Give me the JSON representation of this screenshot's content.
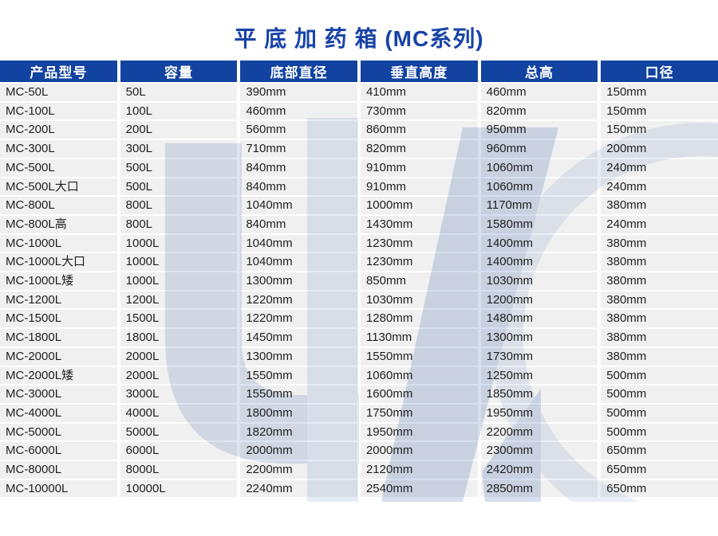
{
  "title": "平 底 加 药 箱 (MC系列)",
  "colors": {
    "header_bg": "#1243a0",
    "title_color": "#1843a7",
    "row_bg": "#f0f0f0",
    "watermark_light": "#dde5f2",
    "watermark_mid": "#d6dfef",
    "watermark_faint": "#e9eef7"
  },
  "table": {
    "columns": [
      "产品型号",
      "容量",
      "底部直径",
      "垂直高度",
      "总高",
      "口径"
    ],
    "rows": [
      [
        "MC-50L",
        "50L",
        "390mm",
        "410mm",
        "460mm",
        "150mm"
      ],
      [
        "MC-100L",
        "100L",
        "460mm",
        "730mm",
        "820mm",
        "150mm"
      ],
      [
        "MC-200L",
        "200L",
        "560mm",
        "860mm",
        "950mm",
        "150mm"
      ],
      [
        "MC-300L",
        "300L",
        "710mm",
        "820mm",
        "960mm",
        "200mm"
      ],
      [
        "MC-500L",
        "500L",
        "840mm",
        "910mm",
        "1060mm",
        "240mm"
      ],
      [
        "MC-500L大口",
        "500L",
        "840mm",
        "910mm",
        "1060mm",
        "240mm"
      ],
      [
        "MC-800L",
        "800L",
        "1040mm",
        "1000mm",
        "1170mm",
        "380mm"
      ],
      [
        "MC-800L高",
        "800L",
        "840mm",
        "1430mm",
        "1580mm",
        "240mm"
      ],
      [
        "MC-1000L",
        "1000L",
        "1040mm",
        "1230mm",
        "1400mm",
        "380mm"
      ],
      [
        "MC-1000L大口",
        "1000L",
        "1040mm",
        "1230mm",
        "1400mm",
        "380mm"
      ],
      [
        "MC-1000L矮",
        "1000L",
        "1300mm",
        "850mm",
        "1030mm",
        "380mm"
      ],
      [
        "MC-1200L",
        "1200L",
        "1220mm",
        "1030mm",
        "1200mm",
        "380mm"
      ],
      [
        "MC-1500L",
        "1500L",
        "1220mm",
        "1280mm",
        "1480mm",
        "380mm"
      ],
      [
        "MC-1800L",
        "1800L",
        "1450mm",
        "1130mm",
        "1300mm",
        "380mm"
      ],
      [
        "MC-2000L",
        "2000L",
        "1300mm",
        "1550mm",
        "1730mm",
        "380mm"
      ],
      [
        "MC-2000L矮",
        "2000L",
        "1550mm",
        "1060mm",
        "1250mm",
        "500mm"
      ],
      [
        "MC-3000L",
        "3000L",
        "1550mm",
        "1600mm",
        "1850mm",
        "500mm"
      ],
      [
        "MC-4000L",
        "4000L",
        "1800mm",
        "1750mm",
        "1950mm",
        "500mm"
      ],
      [
        "MC-5000L",
        "5000L",
        "1820mm",
        "1950mm",
        "2200mm",
        "500mm"
      ],
      [
        "MC-6000L",
        "6000L",
        "2000mm",
        "2000mm",
        "2300mm",
        "650mm"
      ],
      [
        "MC-8000L",
        "8000L",
        "2200mm",
        "2120mm",
        "2420mm",
        "650mm"
      ],
      [
        "MC-10000L",
        "10000L",
        "2240mm",
        "2540mm",
        "2850mm",
        "650mm"
      ]
    ]
  }
}
